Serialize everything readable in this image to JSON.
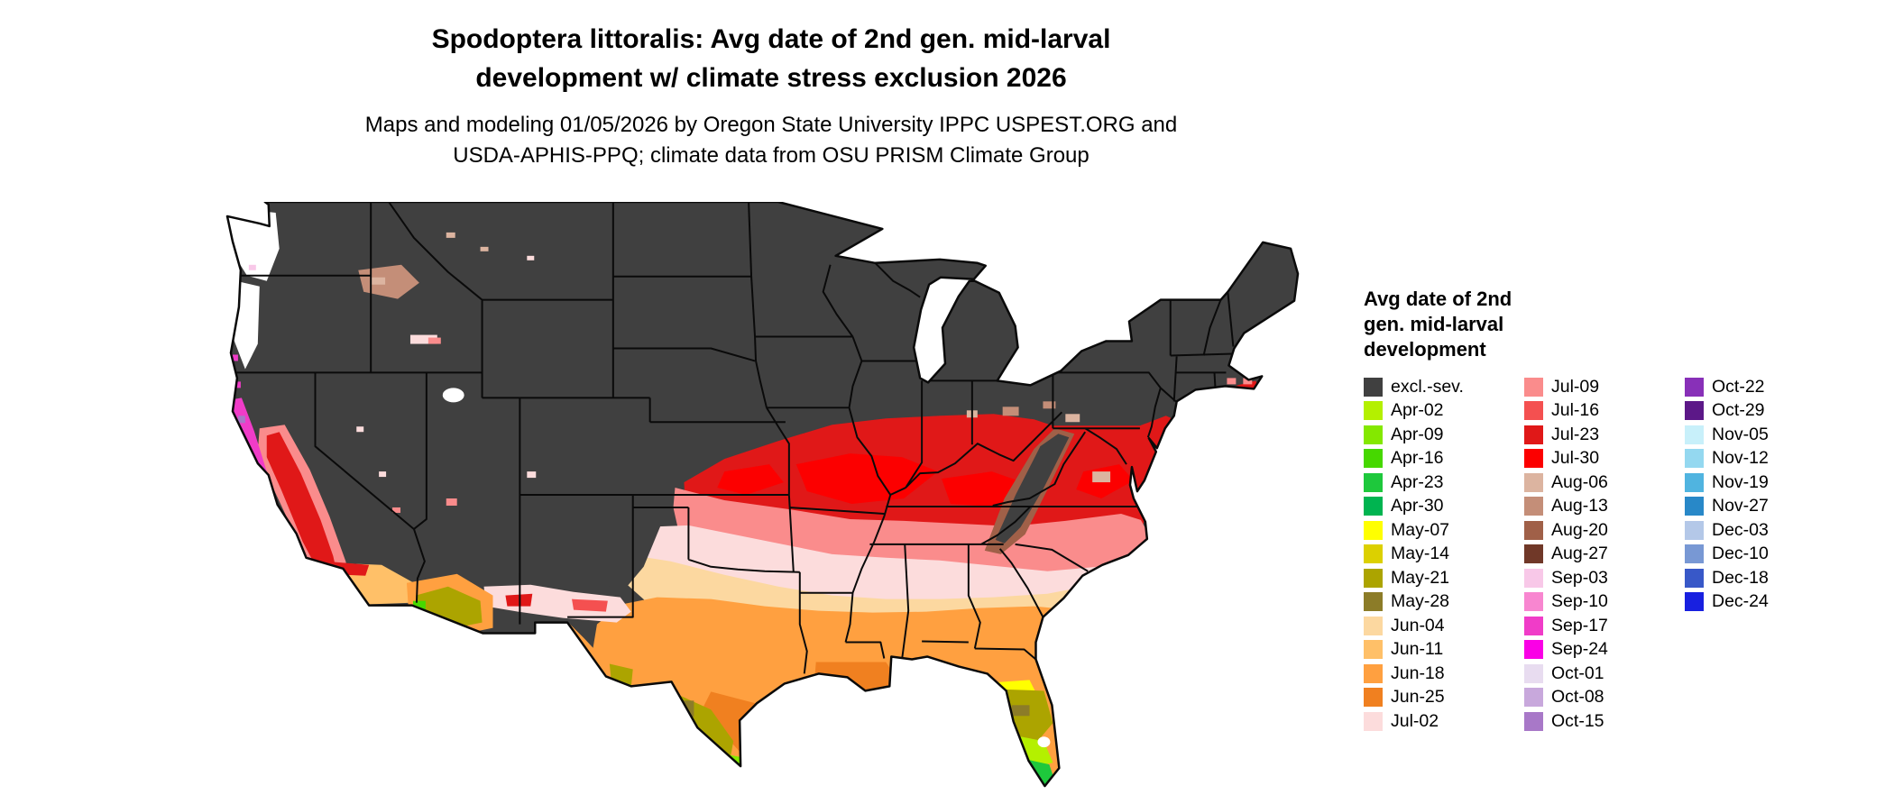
{
  "title": {
    "line1": "Spodoptera littoralis: Avg date of 2nd gen. mid-larval",
    "line2": "development w/ climate stress exclusion 2026"
  },
  "subtitle": {
    "line1": "Maps and modeling 01/05/2026 by Oregon State University IPPC USPEST.ORG and",
    "line2": "USDA-APHIS-PPQ; climate data from OSU PRISM Climate Group"
  },
  "legend": {
    "title_lines": [
      "Avg date of 2nd",
      "gen. mid-larval",
      "development"
    ],
    "columns": [
      {
        "entries": [
          {
            "key": "excl",
            "label": "excl.-sev."
          },
          {
            "key": "apr02",
            "label": "Apr-02"
          },
          {
            "key": "apr09",
            "label": "Apr-09"
          },
          {
            "key": "apr16",
            "label": "Apr-16"
          },
          {
            "key": "apr23",
            "label": "Apr-23"
          },
          {
            "key": "apr30",
            "label": "Apr-30"
          },
          {
            "key": "may07",
            "label": "May-07"
          },
          {
            "key": "may14",
            "label": "May-14"
          },
          {
            "key": "may21",
            "label": "May-21"
          },
          {
            "key": "may28",
            "label": "May-28"
          },
          {
            "key": "jun04",
            "label": "Jun-04"
          },
          {
            "key": "jun11",
            "label": "Jun-11"
          },
          {
            "key": "jun18",
            "label": "Jun-18"
          },
          {
            "key": "jun25",
            "label": "Jun-25"
          },
          {
            "key": "jul02",
            "label": "Jul-02"
          }
        ]
      },
      {
        "entries": [
          {
            "key": "jul09",
            "label": "Jul-09"
          },
          {
            "key": "jul16",
            "label": "Jul-16"
          },
          {
            "key": "jul23",
            "label": "Jul-23"
          },
          {
            "key": "jul30",
            "label": "Jul-30"
          },
          {
            "key": "aug06",
            "label": "Aug-06"
          },
          {
            "key": "aug13",
            "label": "Aug-13"
          },
          {
            "key": "aug20",
            "label": "Aug-20"
          },
          {
            "key": "aug27",
            "label": "Aug-27"
          },
          {
            "key": "sep03",
            "label": "Sep-03"
          },
          {
            "key": "sep10",
            "label": "Sep-10"
          },
          {
            "key": "sep17",
            "label": "Sep-17"
          },
          {
            "key": "sep24",
            "label": "Sep-24"
          },
          {
            "key": "oct01",
            "label": "Oct-01"
          },
          {
            "key": "oct08",
            "label": "Oct-08"
          },
          {
            "key": "oct15",
            "label": "Oct-15"
          }
        ]
      },
      {
        "entries": [
          {
            "key": "oct22",
            "label": "Oct-22"
          },
          {
            "key": "oct29",
            "label": "Oct-29"
          },
          {
            "key": "nov05",
            "label": "Nov-05"
          },
          {
            "key": "nov12",
            "label": "Nov-12"
          },
          {
            "key": "nov19",
            "label": "Nov-19"
          },
          {
            "key": "nov27",
            "label": "Nov-27"
          },
          {
            "key": "dec03",
            "label": "Dec-03"
          },
          {
            "key": "dec10",
            "label": "Dec-10"
          },
          {
            "key": "dec18",
            "label": "Dec-18"
          },
          {
            "key": "dec24",
            "label": "Dec-24"
          }
        ]
      }
    ]
  },
  "map": {
    "region": "Continental United States",
    "palette": {
      "excl": "#404040",
      "apr02": "#B4F000",
      "apr09": "#84E800",
      "apr16": "#46D800",
      "apr23": "#1EC83C",
      "apr30": "#00B450",
      "may07": "#FFFF00",
      "may14": "#DCD000",
      "may21": "#ACA400",
      "may28": "#8C7C28",
      "jun04": "#FCD8A0",
      "jun11": "#FFC068",
      "jun18": "#FFA040",
      "jun25": "#F08020",
      "jul02": "#FCDCDC",
      "jul09": "#FA8C8C",
      "jul16": "#F45050",
      "jul23": "#E01818",
      "jul30": "#FC0000",
      "aug06": "#DCB4A0",
      "aug13": "#C48E78",
      "aug20": "#A06048",
      "aug27": "#703828",
      "sep03": "#F8C8E8",
      "sep10": "#F886D0",
      "sep17": "#F03CC8",
      "sep24": "#FA00E6",
      "oct01": "#E8DCF0",
      "oct08": "#C8A8DC",
      "oct15": "#A878C8",
      "oct22": "#8830B8",
      "oct29": "#5C1888",
      "nov05": "#C8F0FA",
      "nov12": "#94D8F0",
      "nov19": "#50B4E0",
      "nov27": "#2888C8",
      "dec03": "#B4C8E8",
      "dec10": "#7898D4",
      "dec18": "#3858C8",
      "dec24": "#1820E0",
      "water": "#FFFFFF",
      "border": "#0A0A0A"
    }
  }
}
